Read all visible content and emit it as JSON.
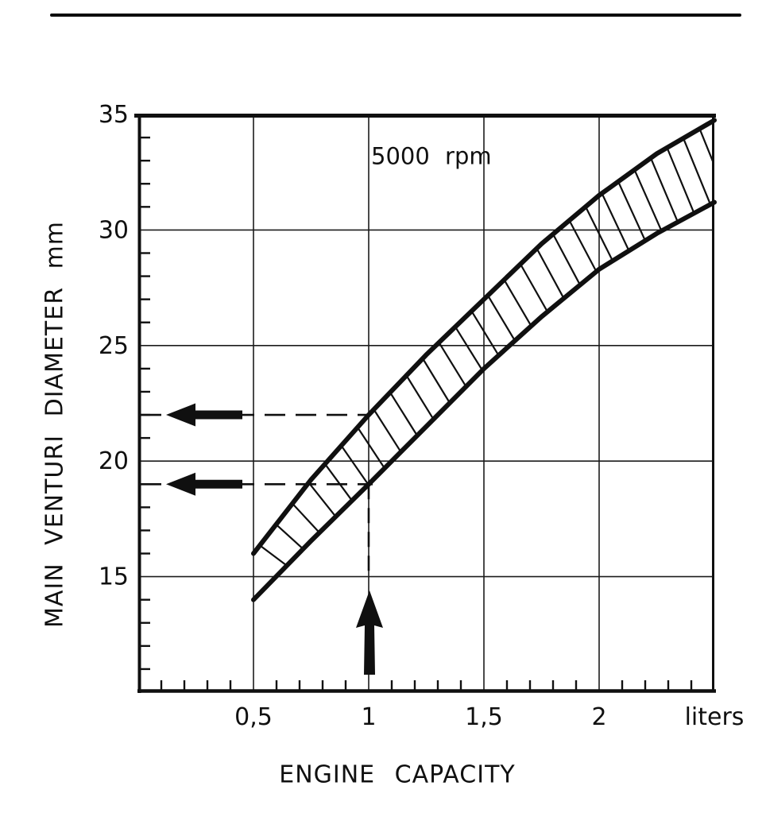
{
  "page": {
    "background": "#ffffff",
    "ink": "#101010",
    "thin_line": "#1c1c1c",
    "top_rule_present": true
  },
  "chart_data": {
    "type": "area",
    "annotation": "5000 rpm",
    "xlabel": "ENGINE CAPACITY",
    "x_unit_label": "liters",
    "ylabel": "MAIN VENTURI DIAMETER mm",
    "xlim": [
      0,
      2.5
    ],
    "ylim": [
      10,
      35
    ],
    "grid": true,
    "x_tick_values": [
      0.5,
      1,
      1.5,
      2
    ],
    "x_tick_labels": [
      "0,5",
      "1",
      "1,5",
      "2"
    ],
    "x_minor_step": 0.1,
    "y_tick_values": [
      15,
      20,
      25,
      30,
      35
    ],
    "y_tick_labels": [
      "15",
      "20",
      "25",
      "30",
      "35"
    ],
    "y_minor_step": 1,
    "band_hatched": true,
    "series": [
      {
        "name": "upper limit",
        "points": [
          [
            0.5,
            16
          ],
          [
            0.75,
            19.2
          ],
          [
            1,
            22
          ],
          [
            1.25,
            24.6
          ],
          [
            1.5,
            27
          ],
          [
            1.75,
            29.4
          ],
          [
            2,
            31.5
          ],
          [
            2.25,
            33.3
          ],
          [
            2.5,
            34.75
          ]
        ]
      },
      {
        "name": "lower limit",
        "points": [
          [
            0.5,
            14
          ],
          [
            0.75,
            16.55
          ],
          [
            1,
            19
          ],
          [
            1.25,
            21.5
          ],
          [
            1.5,
            24
          ],
          [
            1.75,
            26.25
          ],
          [
            2,
            28.3
          ],
          [
            2.25,
            29.85
          ],
          [
            2.5,
            31.2
          ]
        ]
      }
    ],
    "guides": {
      "engine_capacity_liters": 1,
      "venturi_diameter_min_mm": 19,
      "venturi_diameter_max_mm": 22
    }
  }
}
